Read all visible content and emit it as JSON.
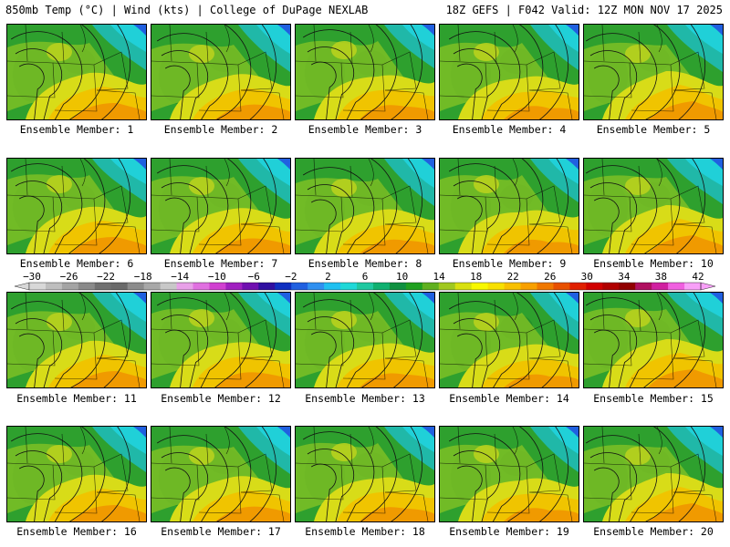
{
  "header": {
    "left_title": "850mb Temp (°C) | Wind (kts) | College of DuPage NEXLAB",
    "right_title": "18Z GEFS | F042 Valid: 12Z MON NOV 17 2025"
  },
  "members": [
    {
      "label": "Ensemble Member: 1"
    },
    {
      "label": "Ensemble Member: 2"
    },
    {
      "label": "Ensemble Member: 3"
    },
    {
      "label": "Ensemble Member: 4"
    },
    {
      "label": "Ensemble Member: 5"
    },
    {
      "label": "Ensemble Member: 6"
    },
    {
      "label": "Ensemble Member: 7"
    },
    {
      "label": "Ensemble Member: 8"
    },
    {
      "label": "Ensemble Member: 9"
    },
    {
      "label": "Ensemble Member: 10"
    },
    {
      "label": "Ensemble Member: 11"
    },
    {
      "label": "Ensemble Member: 12"
    },
    {
      "label": "Ensemble Member: 13"
    },
    {
      "label": "Ensemble Member: 14"
    },
    {
      "label": "Ensemble Member: 15"
    },
    {
      "label": "Ensemble Member: 16"
    },
    {
      "label": "Ensemble Member: 17"
    },
    {
      "label": "Ensemble Member: 18"
    },
    {
      "label": "Ensemble Member: 19"
    },
    {
      "label": "Ensemble Member: 20"
    }
  ],
  "colorbar": {
    "ticks": [
      "-30",
      "-26",
      "-22",
      "-18",
      "-14",
      "-10",
      "-6",
      "-2",
      "2",
      "6",
      "10",
      "14",
      "18",
      "22",
      "26",
      "30",
      "34",
      "38",
      "42"
    ],
    "colors": [
      "#d8d8d8",
      "#bebebe",
      "#a4a4a4",
      "#8a8a8a",
      "#707070",
      "#6a6a6a",
      "#8c8c8c",
      "#a8a8a8",
      "#c8c8c8",
      "#e8a0e8",
      "#e070e0",
      "#d040d0",
      "#a020c0",
      "#7010b0",
      "#3010a0",
      "#1030c0",
      "#2060e0",
      "#3090f0",
      "#20c0f0",
      "#20d8d8",
      "#20c8a0",
      "#10b070",
      "#109040",
      "#20a020",
      "#60b020",
      "#a0c820",
      "#d8e010",
      "#f8f800",
      "#f8e000",
      "#f8c000",
      "#f8a000",
      "#f07800",
      "#e85000",
      "#e02000",
      "#d00000",
      "#b00000",
      "#900000",
      "#b01060",
      "#d020a0",
      "#f060e0",
      "#f8a0f8"
    ]
  }
}
